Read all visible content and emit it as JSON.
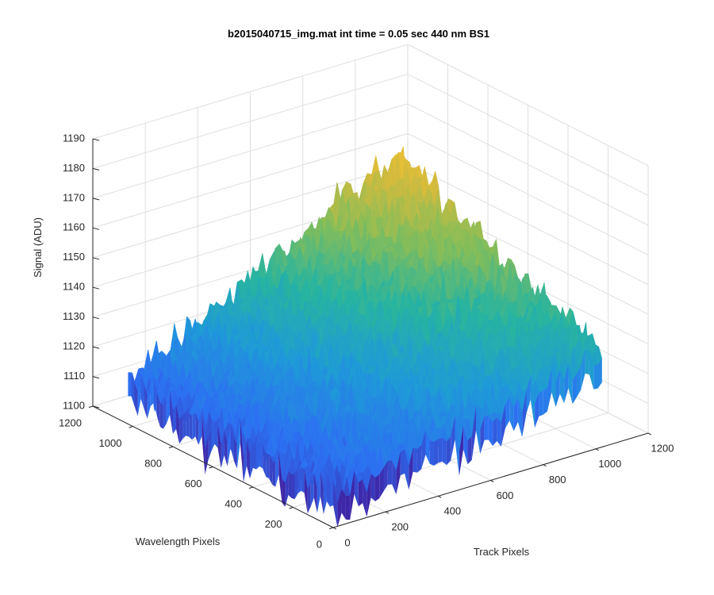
{
  "chart_data": {
    "type": "surface3d",
    "title": "b2015040715_img.mat int time = 0.05 sec  440 nm BS1",
    "xlabel": "Track Pixels",
    "ylabel": "Wavelength Pixels",
    "zlabel": "Signal (ADU)",
    "xlim": [
      0,
      1200
    ],
    "ylim": [
      0,
      1200
    ],
    "zlim": [
      1100,
      1190
    ],
    "xticks": [
      "0",
      "200",
      "400",
      "600",
      "800",
      "1000",
      "1200"
    ],
    "yticks": [
      "0",
      "200",
      "400",
      "600",
      "800",
      "1000",
      "1200"
    ],
    "zticks": [
      "1100",
      "1110",
      "1120",
      "1130",
      "1140",
      "1150",
      "1160",
      "1170",
      "1180",
      "1190"
    ],
    "data_extent": {
      "x": [
        0,
        1024
      ],
      "y": [
        0,
        1024
      ]
    },
    "signal_corners": {
      "track_0_wavelength_0": 1112,
      "track_1024_wavelength_0": 1132,
      "track_0_wavelength_1024": 1114,
      "track_1024_wavelength_1024": 1163
    },
    "noise_amplitude": 12,
    "grid": true,
    "colormap": [
      "#3e26a8",
      "#2d6ff2",
      "#1f9ad8",
      "#27b4a0",
      "#84bd5a",
      "#d4bb3d",
      "#fbc430"
    ]
  }
}
